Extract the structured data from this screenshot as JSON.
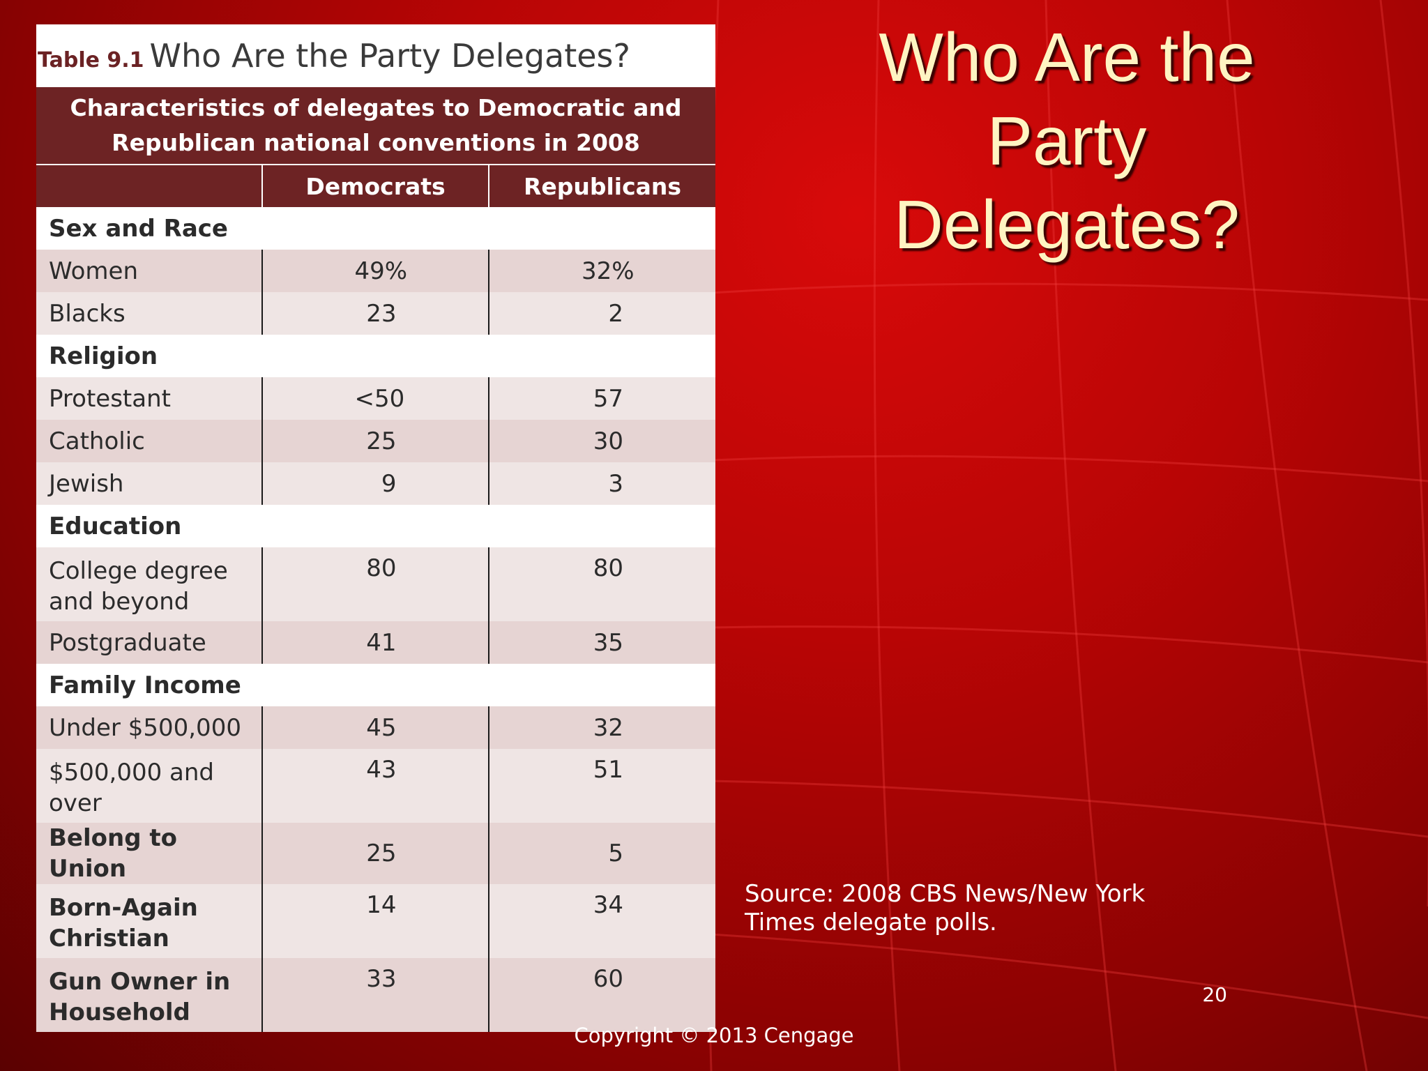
{
  "slide": {
    "title_lines": [
      "Who Are the",
      "Party",
      "Delegates?"
    ],
    "source_text": "Source: 2008 CBS News/New York Times delegate polls.",
    "page_number": "20",
    "copyright": "Copyright © 2013 Cengage"
  },
  "table": {
    "number": "Table 9.1",
    "title": "Who Are the Party Delegates?",
    "caption_lines": [
      "Characteristics of delegates to Democratic and",
      "Republican national conventions in 2008"
    ],
    "columns": [
      "",
      "Democrats",
      "Republicans"
    ],
    "sections": [
      {
        "heading": "Sex and Race",
        "rows": [
          {
            "label": "Women",
            "dem": "49%",
            "rep": "32%"
          },
          {
            "label": "Blacks",
            "dem": "23",
            "rep": "2"
          }
        ]
      },
      {
        "heading": "Religion",
        "rows": [
          {
            "label": "Protestant",
            "dem": "<50",
            "rep": "57"
          },
          {
            "label": "Catholic",
            "dem": "25",
            "rep": "30"
          },
          {
            "label": "Jewish",
            "dem": "9",
            "rep": "3"
          }
        ]
      },
      {
        "heading": "Education",
        "rows": [
          {
            "label": "College degree and beyond",
            "dem": "80",
            "rep": "80"
          },
          {
            "label": "Postgraduate",
            "dem": "41",
            "rep": "35"
          }
        ]
      },
      {
        "heading": "Family Income",
        "rows": [
          {
            "label": "Under $500,000",
            "dem": "45",
            "rep": "32"
          },
          {
            "label": "$500,000 and over",
            "dem": "43",
            "rep": "51"
          }
        ]
      }
    ],
    "extra_rows": [
      {
        "label": "Belong to Union",
        "dem": "25",
        "rep": "5"
      },
      {
        "label": "Born-Again Christian",
        "dem": "14",
        "rep": "34"
      },
      {
        "label": "Gun Owner in Household",
        "dem": "33",
        "rep": "60"
      }
    ]
  },
  "colors": {
    "header_bg": "#6d2324",
    "title_text": "#fff4c2",
    "row_shade_a": "#e6d4d3",
    "row_shade_b": "#efe5e4"
  }
}
